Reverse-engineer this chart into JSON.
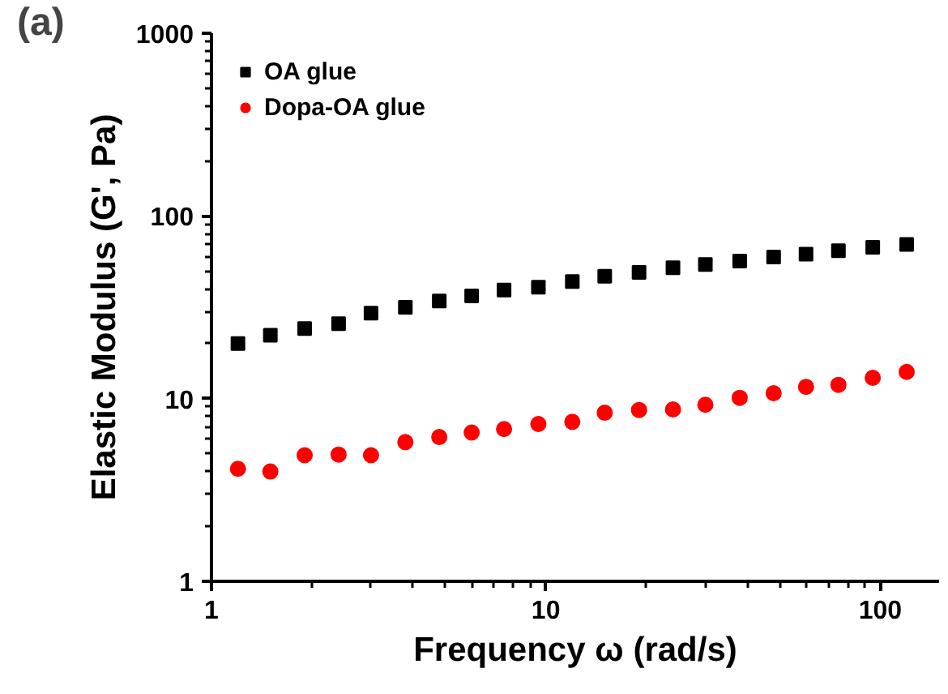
{
  "chart_data": {
    "type": "scatter",
    "xlabel": "Frequency ω (rad/s)",
    "ylabel": "Elastic Modulus (G', Pa)",
    "annotations": [
      "(a)"
    ],
    "x": [
      1.2,
      1.5,
      1.9,
      2.4,
      3.0,
      3.8,
      4.8,
      6.0,
      7.5,
      9.5,
      12,
      15,
      19,
      24,
      30,
      38,
      48,
      60,
      75,
      95,
      120
    ],
    "series": [
      {
        "name": "OA glue",
        "color": "#000000",
        "marker": "square",
        "values": [
          20.0,
          22.2,
          24.2,
          25.7,
          29.4,
          31.6,
          34.2,
          36.5,
          39.3,
          40.7,
          43.7,
          46.7,
          49.1,
          52.0,
          54.2,
          56.6,
          59.6,
          61.8,
          64.5,
          67.3,
          69.8
        ]
      },
      {
        "name": "Dopa-OA glue",
        "color": "#ff0000",
        "marker": "circle",
        "values": [
          4.13,
          3.99,
          4.9,
          4.94,
          4.9,
          5.78,
          6.16,
          6.52,
          6.81,
          7.26,
          7.46,
          8.37,
          8.67,
          8.73,
          9.25,
          10.1,
          10.7,
          11.6,
          11.9,
          13.0,
          14.0
        ]
      }
    ],
    "log": "xy",
    "xlim": [
      1,
      150
    ],
    "ylim": [
      1,
      1000
    ],
    "xticks": [
      1,
      10,
      100
    ],
    "yticks": [
      1,
      10,
      100,
      1000
    ],
    "grid": false,
    "legend": "top left"
  }
}
